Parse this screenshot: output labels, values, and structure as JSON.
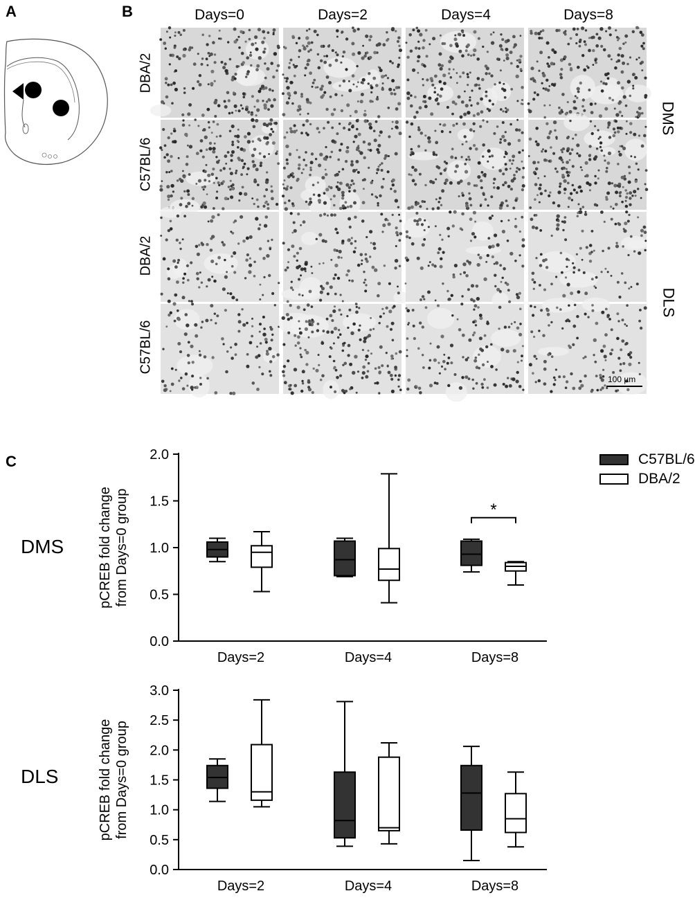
{
  "panels": {
    "a_label": "A",
    "b_label": "B",
    "c_label": "C"
  },
  "micrographs": {
    "columns": [
      "Days=0",
      "Days=2",
      "Days=4",
      "Days=8"
    ],
    "rows": [
      "DBA/2",
      "C57BL/6",
      "DBA/2",
      "C57BL/6"
    ],
    "regions": [
      "DMS",
      "DLS"
    ],
    "scale_bar": "100 µm"
  },
  "legend": {
    "c57": "C57BL/6",
    "dba": "DBA/2",
    "c57_color": "#333333",
    "dba_color": "#ffffff"
  },
  "chart_data": [
    {
      "type": "box",
      "region_label": "DMS",
      "ylabel": [
        "pCREB fold change",
        "from Days=0 group"
      ],
      "categories": [
        "Days=2",
        "Days=4",
        "Days=8"
      ],
      "ylim": [
        0,
        2.0
      ],
      "yticks": [
        "0.0",
        "0.5",
        "1.0",
        "1.5",
        "2.0"
      ],
      "series": [
        {
          "name": "C57BL/6",
          "color": "#333333",
          "boxes": [
            {
              "min": 0.85,
              "q1": 0.9,
              "median": 0.98,
              "q3": 1.06,
              "max": 1.1
            },
            {
              "min": 0.69,
              "q1": 0.7,
              "median": 0.87,
              "q3": 1.07,
              "max": 1.1
            },
            {
              "min": 0.74,
              "q1": 0.81,
              "median": 0.93,
              "q3": 1.07,
              "max": 1.09
            }
          ]
        },
        {
          "name": "DBA/2",
          "color": "#ffffff",
          "boxes": [
            {
              "min": 0.53,
              "q1": 0.79,
              "median": 0.95,
              "q3": 1.02,
              "max": 1.17
            },
            {
              "min": 0.41,
              "q1": 0.65,
              "median": 0.77,
              "q3": 0.99,
              "max": 1.79
            },
            {
              "min": 0.6,
              "q1": 0.75,
              "median": 0.8,
              "q3": 0.84,
              "max": 0.85
            }
          ]
        }
      ],
      "annotation": {
        "text": "*",
        "category": "Days=8",
        "y": 1.32
      }
    },
    {
      "type": "box",
      "region_label": "DLS",
      "ylabel": [
        "pCREB fold change",
        "from Days=0 group"
      ],
      "categories": [
        "Days=2",
        "Days=4",
        "Days=8"
      ],
      "ylim": [
        0,
        3.0
      ],
      "yticks": [
        "0.0",
        "0.5",
        "1.0",
        "1.5",
        "2.0",
        "2.5",
        "3.0"
      ],
      "series": [
        {
          "name": "C57BL/6",
          "color": "#333333",
          "boxes": [
            {
              "min": 1.14,
              "q1": 1.36,
              "median": 1.54,
              "q3": 1.74,
              "max": 1.85
            },
            {
              "min": 0.39,
              "q1": 0.53,
              "median": 0.82,
              "q3": 1.63,
              "max": 2.81
            },
            {
              "min": 0.15,
              "q1": 0.66,
              "median": 1.28,
              "q3": 1.74,
              "max": 2.06
            }
          ]
        },
        {
          "name": "DBA/2",
          "color": "#ffffff",
          "boxes": [
            {
              "min": 1.05,
              "q1": 1.16,
              "median": 1.3,
              "q3": 2.09,
              "max": 2.84
            },
            {
              "min": 0.43,
              "q1": 0.65,
              "median": 0.7,
              "q3": 1.88,
              "max": 2.12
            },
            {
              "min": 0.38,
              "q1": 0.62,
              "median": 0.85,
              "q3": 1.27,
              "max": 1.63
            }
          ]
        }
      ]
    }
  ]
}
